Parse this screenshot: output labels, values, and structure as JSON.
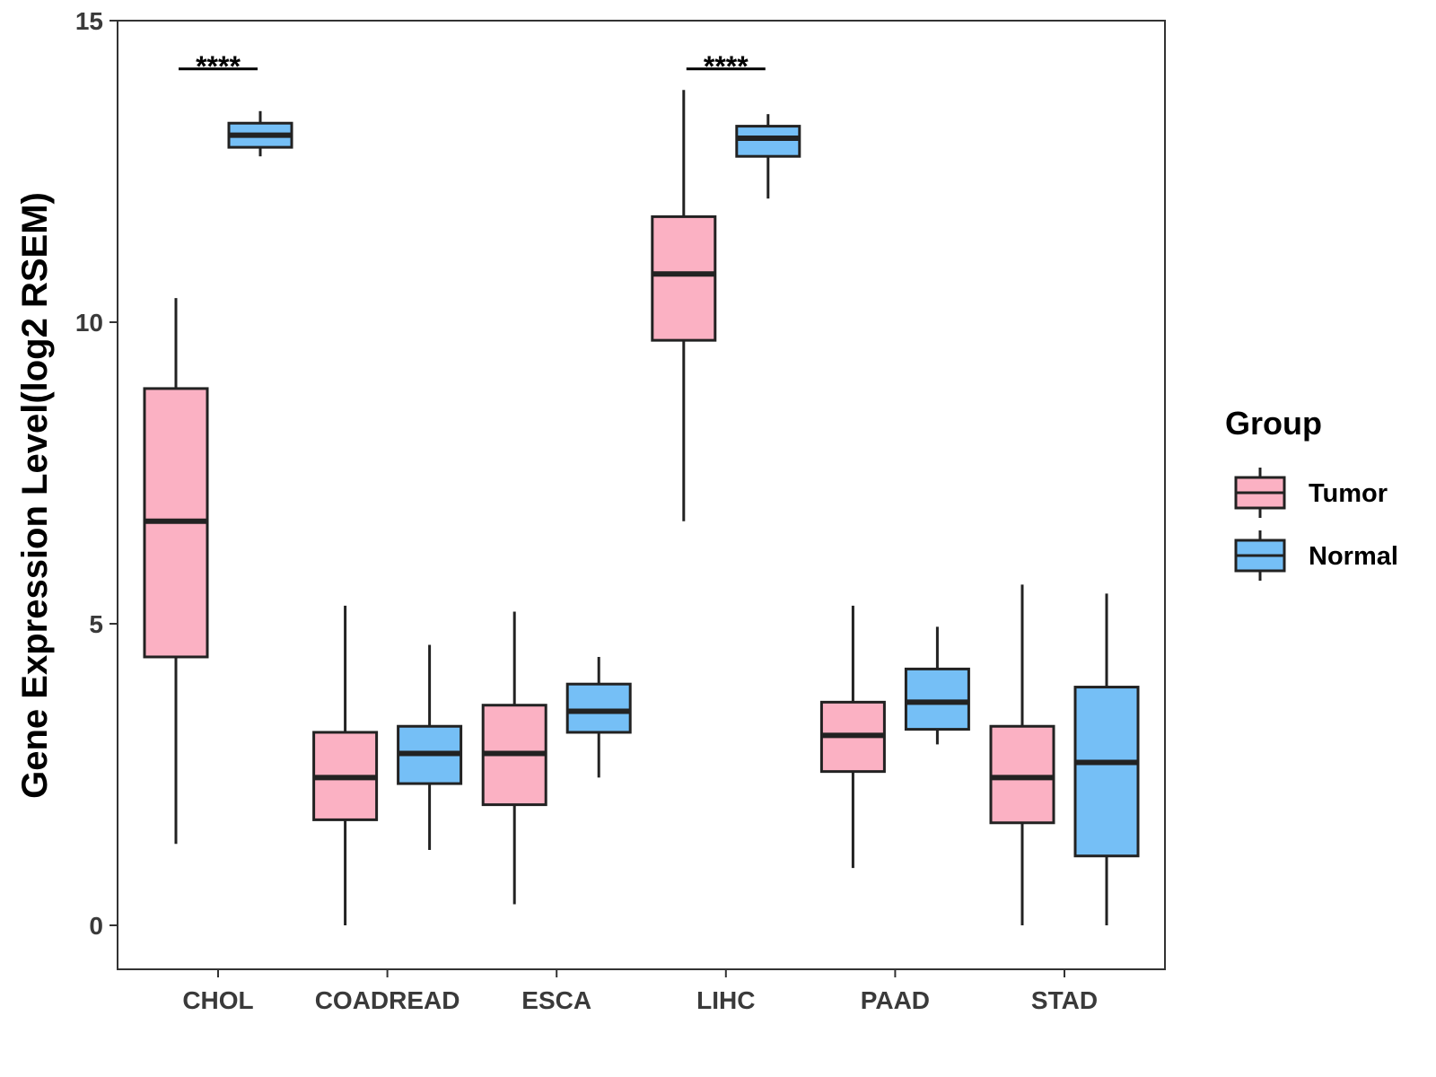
{
  "chart_data": {
    "type": "boxplot",
    "title": "",
    "xlabel": "",
    "ylabel": "Gene Expression Level(log2 RSEM)",
    "ylim": [
      -0.7,
      15
    ],
    "yticks": [
      0,
      5,
      10,
      15
    ],
    "categories": [
      "CHOL",
      "COADREAD",
      "ESCA",
      "LIHC",
      "PAAD",
      "STAD"
    ],
    "legend": {
      "title": "Group",
      "position": "right"
    },
    "series": [
      {
        "name": "Tumor",
        "color": "#FBB1C3",
        "boxes": [
          {
            "category": "CHOL",
            "min": 1.35,
            "q1": 4.45,
            "median": 6.7,
            "q3": 8.9,
            "max": 10.4
          },
          {
            "category": "COADREAD",
            "min": 0.0,
            "q1": 1.75,
            "median": 2.45,
            "q3": 3.2,
            "max": 5.3
          },
          {
            "category": "ESCA",
            "min": 0.35,
            "q1": 2.0,
            "median": 2.85,
            "q3": 3.65,
            "max": 5.2
          },
          {
            "category": "LIHC",
            "min": 6.7,
            "q1": 9.7,
            "median": 10.8,
            "q3": 11.75,
            "max": 13.85
          },
          {
            "category": "PAAD",
            "min": 0.95,
            "q1": 2.55,
            "median": 3.15,
            "q3": 3.7,
            "max": 5.3
          },
          {
            "category": "STAD",
            "min": 0.0,
            "q1": 1.7,
            "median": 2.45,
            "q3": 3.3,
            "max": 5.65
          }
        ]
      },
      {
        "name": "Normal",
        "color": "#75BFF6",
        "boxes": [
          {
            "category": "CHOL",
            "min": 12.75,
            "q1": 12.9,
            "median": 13.1,
            "q3": 13.3,
            "max": 13.5
          },
          {
            "category": "COADREAD",
            "min": 1.25,
            "q1": 2.35,
            "median": 2.85,
            "q3": 3.3,
            "max": 4.65
          },
          {
            "category": "ESCA",
            "min": 2.45,
            "q1": 3.2,
            "median": 3.55,
            "q3": 4.0,
            "max": 4.45
          },
          {
            "category": "LIHC",
            "min": 12.05,
            "q1": 12.75,
            "median": 13.05,
            "q3": 13.25,
            "max": 13.45
          },
          {
            "category": "PAAD",
            "min": 3.0,
            "q1": 3.25,
            "median": 3.7,
            "q3": 4.25,
            "max": 4.95
          },
          {
            "category": "STAD",
            "min": 0.0,
            "q1": 1.15,
            "median": 2.7,
            "q3": 3.95,
            "max": 5.5
          }
        ]
      }
    ],
    "annotations": [
      {
        "category": "CHOL",
        "text": "****",
        "y": 14.2
      },
      {
        "category": "LIHC",
        "text": "****",
        "y": 14.2
      }
    ]
  }
}
